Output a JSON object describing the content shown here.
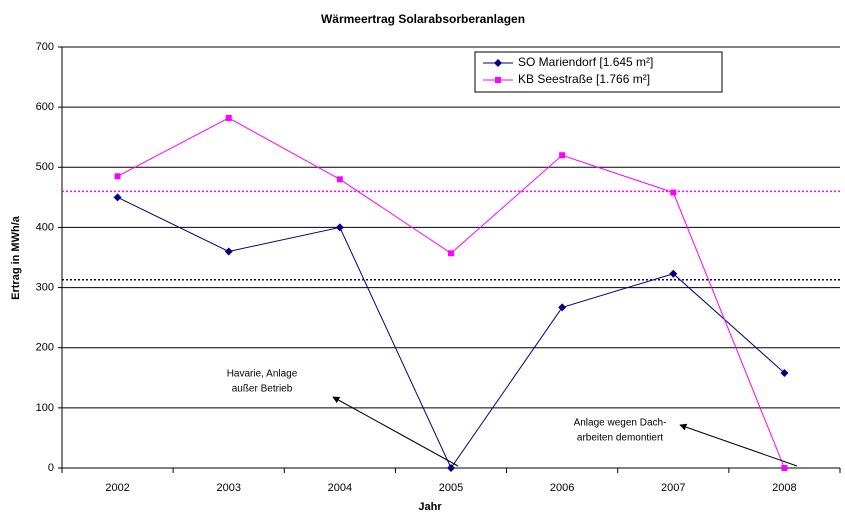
{
  "chart_data": {
    "type": "line",
    "title": "Wärmeertrag Solarabsorberanlagen",
    "x_label": "Jahr",
    "y_label": "Ertrag in MWh/a",
    "categories": [
      "2002",
      "2003",
      "2004",
      "2005",
      "2006",
      "2007",
      "2008"
    ],
    "series": [
      {
        "name": "SO Mariendorf [1.645 m²]",
        "color": "#000080",
        "marker": "diamond",
        "values": [
          450,
          360,
          400,
          0,
          267,
          323,
          158
        ]
      },
      {
        "name": "KB Seestraße [1.766 m²]",
        "color": "#ff00ff",
        "marker": "square",
        "values": [
          485,
          582,
          480,
          357,
          520,
          458,
          0
        ]
      }
    ],
    "reference_lines": [
      {
        "value": 460,
        "color": "#ff00ff"
      },
      {
        "value": 313,
        "color": "#000080"
      }
    ],
    "annotations": [
      {
        "lines": [
          "Havarie, Anlage",
          "außer Betrieb"
        ]
      },
      {
        "lines": [
          "Anlage wegen Dach-",
          "arbeiten demontiert"
        ]
      }
    ],
    "ylim": [
      0,
      700
    ],
    "yticks": [
      0,
      100,
      200,
      300,
      400,
      500,
      600,
      700
    ],
    "grid": true,
    "legend": "top right"
  }
}
